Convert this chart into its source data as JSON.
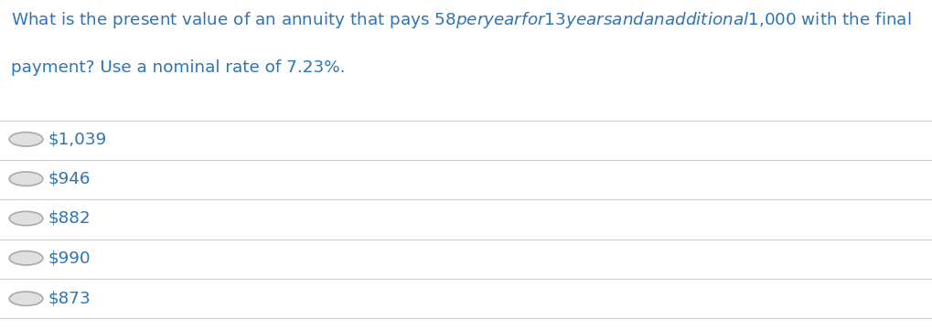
{
  "question_line1": "What is the present value of an annuity that pays $58 per year for 13 years and an additional $1,000 with the final",
  "question_line2": "payment? Use a nominal rate of 7.23%.",
  "options": [
    "$1,039",
    "$946",
    "$882",
    "$990",
    "$873"
  ],
  "background_color": "#ffffff",
  "text_color": "#2e74b5",
  "option_text_color": "#2e74b5",
  "divider_color": "#cccccc",
  "circle_edge_color": "#aaaaaa",
  "circle_fill_color": "#e0e0e0",
  "question_fontsize": 13.2,
  "option_fontsize": 13.2,
  "fig_width": 10.19,
  "fig_height": 3.61
}
